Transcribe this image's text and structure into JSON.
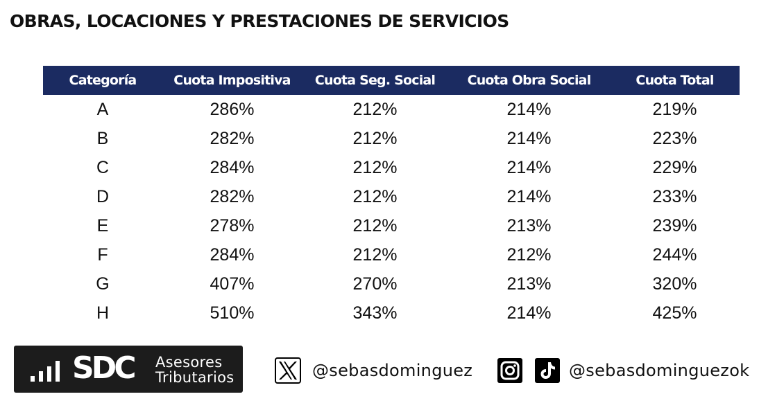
{
  "title": "OBRAS, LOCACIONES Y PRESTACIONES DE SERVICIOS",
  "table": {
    "headers": [
      "Categoría",
      "Cuota Impositiva",
      "Cuota Seg. Social",
      "Cuota Obra Social",
      "Cuota Total"
    ],
    "rows": [
      [
        "A",
        "286%",
        "212%",
        "214%",
        "219%"
      ],
      [
        "B",
        "282%",
        "212%",
        "214%",
        "223%"
      ],
      [
        "C",
        "284%",
        "212%",
        "214%",
        "229%"
      ],
      [
        "D",
        "282%",
        "212%",
        "214%",
        "233%"
      ],
      [
        "E",
        "278%",
        "212%",
        "213%",
        "239%"
      ],
      [
        "F",
        "284%",
        "212%",
        "212%",
        "244%"
      ],
      [
        "G",
        "407%",
        "270%",
        "213%",
        "320%"
      ],
      [
        "H",
        "510%",
        "343%",
        "214%",
        "425%"
      ]
    ]
  },
  "logo": {
    "mark": "SDC",
    "line1": "Asesores",
    "line2": "Tributarios"
  },
  "social": {
    "x_handle": "@sebasdominguez",
    "ig_tiktok_handle": "@sebasdominguezok"
  },
  "colors": {
    "header_bg": "#1b2b61",
    "header_text": "#ffffff",
    "logo_bg": "#1c1c1c"
  },
  "icons": [
    "x-icon",
    "instagram-icon",
    "tiktok-icon",
    "signal-bars-icon"
  ]
}
